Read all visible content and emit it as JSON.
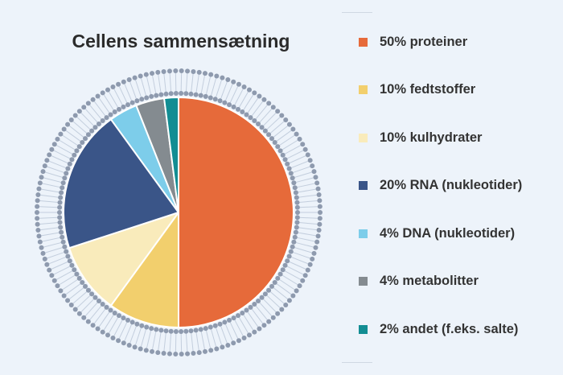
{
  "chart_data": {
    "type": "pie",
    "title": "Cellens sammensætning",
    "slices": [
      {
        "label": "50% proteiner",
        "value": 50,
        "color": "#e66a3a"
      },
      {
        "label": "10% fedtstoffer",
        "value": 10,
        "color": "#f2cf6d"
      },
      {
        "label": "10% kulhydrater",
        "value": 10,
        "color": "#f9ebbb"
      },
      {
        "label": "20% RNA (nukleotider)",
        "value": 20,
        "color": "#3a5588"
      },
      {
        "label": "4% DNA (nukleotider)",
        "value": 4,
        "color": "#7dcdea"
      },
      {
        "label": "4% metabolitter",
        "value": 4,
        "color": "#848b90"
      },
      {
        "label": "2% andet (f.eks. salte)",
        "value": 2,
        "color": "#128d93"
      }
    ],
    "legend_position": "right"
  },
  "colors": {
    "background": "#edf3fa",
    "membrane_beads": "#8e9aae",
    "membrane_tails": "#c3cedd"
  }
}
